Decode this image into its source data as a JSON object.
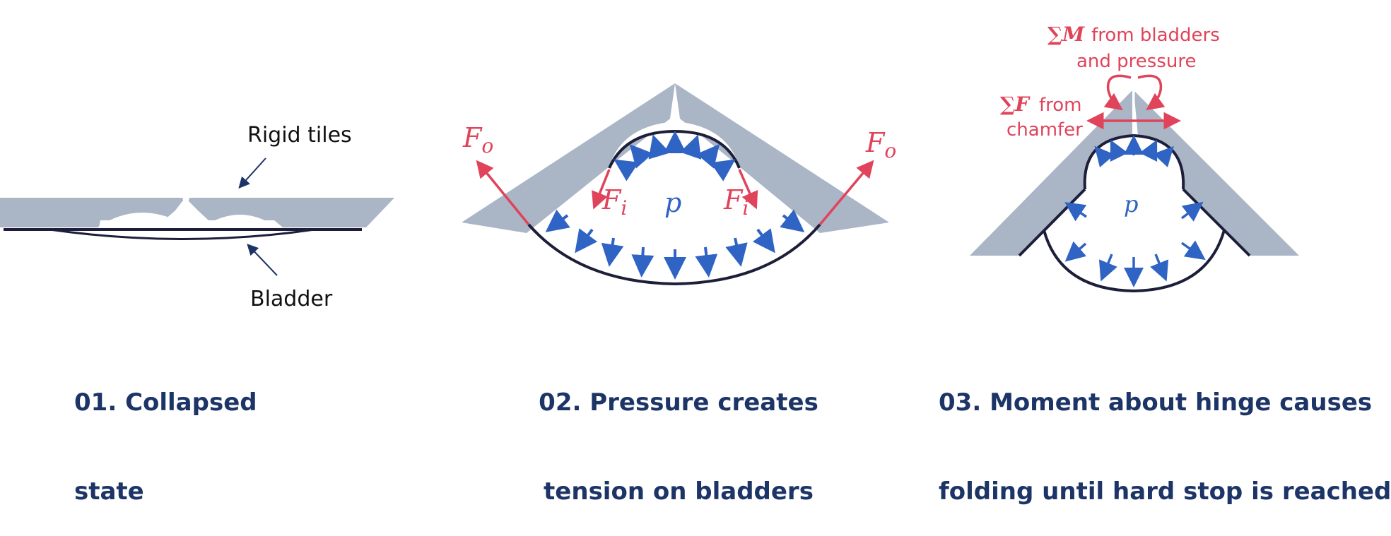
{
  "panel1": {
    "tiles_label": "Rigid tiles",
    "bladder_label": "Bladder",
    "caption_line1": "01. Collapsed",
    "caption_line2": "state"
  },
  "panel2": {
    "force_outer": "F",
    "force_outer_sub": "o",
    "force_inner": "F",
    "force_inner_sub": "i",
    "pressure": "p",
    "caption_line1": "02. Pressure creates",
    "caption_line2": "tension on bladders"
  },
  "panel3": {
    "moment_symbol": "∑M",
    "moment_text_line1": "from  bladders",
    "moment_text_line2": "and pressure",
    "force_symbol": "∑F",
    "force_text_line1": "from",
    "force_text_line2": "chamfer",
    "pressure": "p",
    "caption_line1": "03. Moment about hinge causes",
    "caption_line2": "folding until hard stop is reached"
  },
  "colors": {
    "tile": "#aab5c6",
    "bladder": "#1d1f3a",
    "pressure_arrow": "#2f63c4",
    "force_arrow": "#e0435a",
    "caption": "#1c3466",
    "pointer": "#1c3466"
  }
}
